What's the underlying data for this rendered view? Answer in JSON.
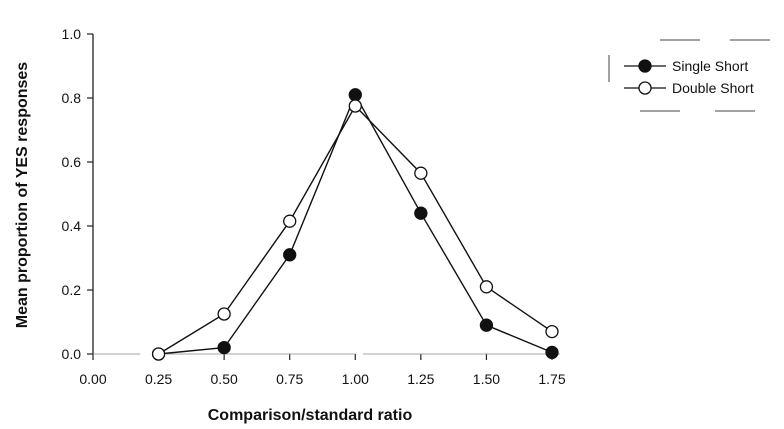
{
  "chart_data": {
    "type": "line",
    "title": "",
    "xlabel": "Comparison/standard ratio",
    "ylabel": "Mean proportion of YES responses",
    "x_ticks": [
      "0.00",
      "0.25",
      "0.50",
      "0.75",
      "1.00",
      "1.25",
      "1.50",
      "1.75"
    ],
    "y_ticks": [
      "0.0",
      "0.2",
      "0.4",
      "0.6",
      "0.8",
      "1.0"
    ],
    "xlim": [
      0,
      1.75
    ],
    "ylim": [
      0,
      1.0
    ],
    "grid": false,
    "legend_position": "top-right",
    "series": [
      {
        "name": "Single Short",
        "marker": "filled-circle",
        "color": "#111111",
        "x": [
          0.25,
          0.5,
          0.75,
          1.0,
          1.25,
          1.5,
          1.75
        ],
        "y": [
          0.0,
          0.02,
          0.31,
          0.81,
          0.44,
          0.09,
          0.005
        ]
      },
      {
        "name": "Double Short",
        "marker": "open-circle",
        "color": "#111111",
        "x": [
          0.25,
          0.5,
          0.75,
          1.0,
          1.25,
          1.5,
          1.75
        ],
        "y": [
          0.0,
          0.125,
          0.415,
          0.775,
          0.565,
          0.21,
          0.07
        ]
      }
    ]
  }
}
